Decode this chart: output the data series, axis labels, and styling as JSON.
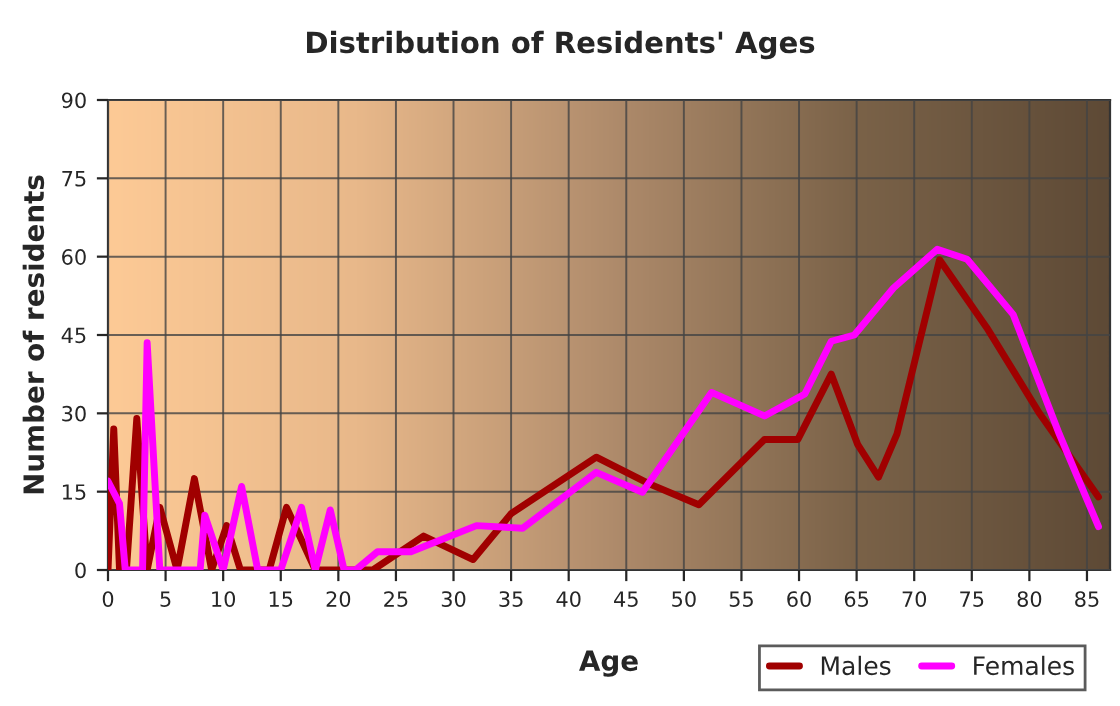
{
  "chart_data": {
    "type": "line",
    "title": "Distribution of Residents' Ages",
    "xlabel": "Age",
    "ylabel": "Number of residents",
    "xlim": [
      0,
      87
    ],
    "xticks": [
      0,
      5,
      10,
      15,
      20,
      25,
      30,
      35,
      40,
      45,
      50,
      55,
      60,
      65,
      70,
      75,
      80,
      85
    ],
    "ylim": [
      0,
      90
    ],
    "yticks": [
      0,
      15,
      30,
      45,
      60,
      75,
      90
    ],
    "grid": true,
    "legend": "bottom right",
    "marker": "none",
    "line_style": "solid",
    "series": [
      {
        "name": "Males",
        "color": "#a00000",
        "x": [
          0,
          0.5,
          1,
          1.6,
          2.5,
          3.4,
          4.5,
          6,
          7.5,
          9,
          10.3,
          11.5,
          14,
          15.5,
          18,
          23,
          27.4,
          31.7,
          35,
          42.4,
          47,
          51.3,
          57,
          59.9,
          62.8,
          65.1,
          66.9,
          68.5,
          72.2,
          76.3,
          80.9,
          86
        ],
        "values": [
          0,
          27,
          0,
          0,
          29,
          0,
          12,
          0,
          17.5,
          0,
          8.5,
          0,
          0,
          12,
          0,
          0,
          6.5,
          2,
          10.8,
          21.6,
          16.5,
          12.5,
          25,
          25,
          37.5,
          24,
          17.8,
          26,
          59.4,
          46.4,
          29.9,
          14
        ]
      },
      {
        "name": "Females",
        "color": "#ff00ff",
        "x": [
          0,
          1,
          1.5,
          3,
          3.4,
          4.5,
          8,
          8.4,
          10,
          11.6,
          13,
          15,
          16.8,
          18,
          19.3,
          20.5,
          21.5,
          23.4,
          26.3,
          32,
          36,
          42.4,
          46.4,
          52.4,
          57,
          60.5,
          62.8,
          64.8,
          68.2,
          72,
          74.6,
          78.6,
          82.6,
          86
        ],
        "values": [
          17,
          12.7,
          0,
          0,
          43.5,
          0,
          0,
          10.5,
          0,
          16,
          0,
          0,
          12,
          0,
          11.5,
          0,
          0,
          3.5,
          3.5,
          8.5,
          8,
          18.7,
          14.9,
          34,
          29.5,
          33.7,
          43.8,
          45,
          54,
          61.4,
          59.5,
          48.9,
          26,
          8.3
        ]
      }
    ]
  }
}
